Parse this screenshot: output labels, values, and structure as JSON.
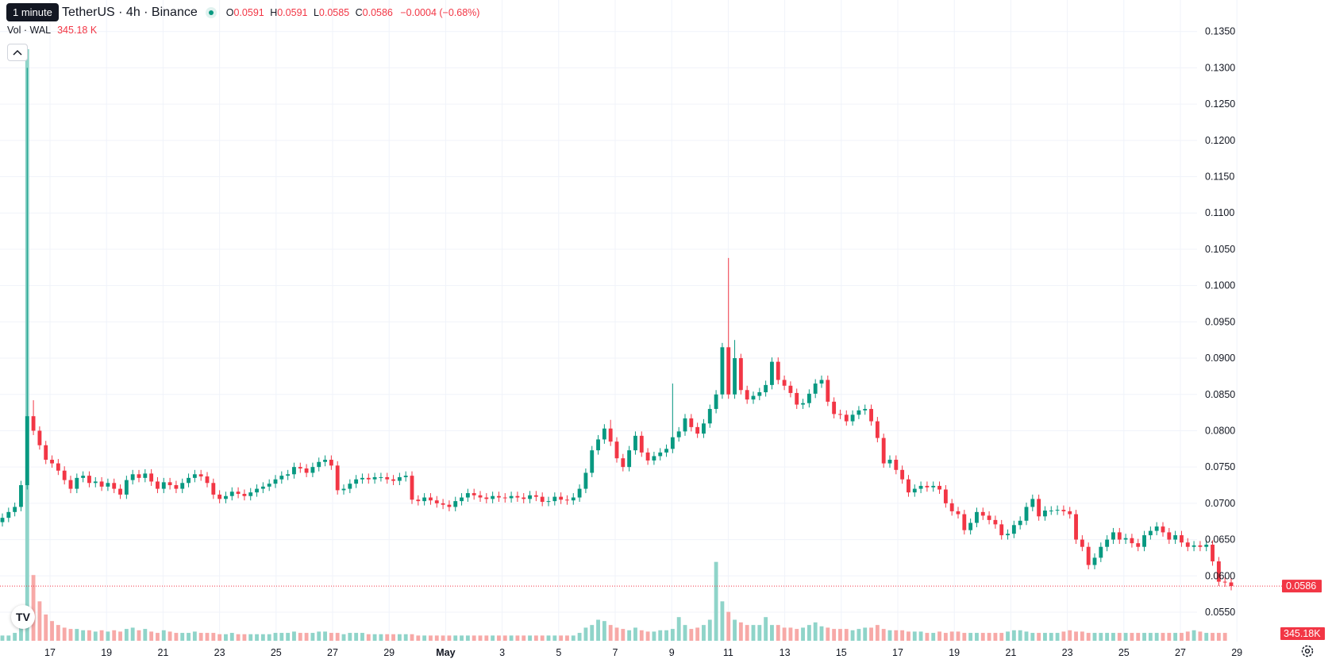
{
  "tooltip": "1 minute",
  "header": {
    "symbol": "TetherUS · 4h · Binance",
    "open_key": "O",
    "open": "0.0591",
    "high_key": "H",
    "high": "0.0591",
    "low_key": "L",
    "low": "0.0585",
    "close_key": "C",
    "close": "0.0586",
    "change": "−0.0004 (−0.68%)"
  },
  "volume": {
    "label": "Vol · WAL",
    "value": "345.18 K"
  },
  "price_tag": "0.0586",
  "volume_tag": "345.18K",
  "colors": {
    "up": "#089981",
    "down": "#f23645",
    "vol_up": "#8fd4c9",
    "vol_down": "#f7a9a7",
    "grid": "#f0f3fa"
  },
  "icons": {
    "collapse": "chevron-up-icon",
    "logo": "tradingview-logo-icon",
    "settings": "gear-icon"
  },
  "chart_data": {
    "type": "candlestick",
    "x_tick_labels": [
      "17",
      "19",
      "21",
      "23",
      "25",
      "27",
      "29",
      "May",
      "3",
      "5",
      "7",
      "9",
      "11",
      "13",
      "15",
      "17",
      "19",
      "21",
      "23",
      "25",
      "27",
      "29"
    ],
    "y_tick_labels": [
      "0.0550",
      "0.0600",
      "0.0650",
      "0.0700",
      "0.0750",
      "0.0800",
      "0.0850",
      "0.0900",
      "0.0950",
      "0.1000",
      "0.1050",
      "0.1100",
      "0.1150",
      "0.1200",
      "0.1250",
      "0.1300",
      "0.1350"
    ],
    "ylim": [
      0.0527,
      0.1365
    ],
    "last_price": 0.0586,
    "closes": [
      0.068,
      0.0688,
      0.0695,
      0.0725,
      0.082,
      0.08,
      0.078,
      0.076,
      0.0755,
      0.0745,
      0.0732,
      0.072,
      0.0735,
      0.0738,
      0.0728,
      0.073,
      0.0723,
      0.0728,
      0.072,
      0.0712,
      0.0732,
      0.074,
      0.0735,
      0.0741,
      0.073,
      0.072,
      0.0729,
      0.0725,
      0.072,
      0.0728,
      0.0735,
      0.074,
      0.0737,
      0.0728,
      0.0712,
      0.0706,
      0.071,
      0.0716,
      0.0713,
      0.071,
      0.0715,
      0.072,
      0.0723,
      0.0727,
      0.0733,
      0.0738,
      0.074,
      0.075,
      0.0748,
      0.0742,
      0.075,
      0.0757,
      0.076,
      0.0752,
      0.0718,
      0.072,
      0.0727,
      0.0733,
      0.0735,
      0.0733,
      0.0736,
      0.0736,
      0.0733,
      0.0731,
      0.0736,
      0.0738,
      0.0705,
      0.0703,
      0.0708,
      0.0704,
      0.07,
      0.0698,
      0.0695,
      0.0703,
      0.0708,
      0.0714,
      0.0711,
      0.0708,
      0.0706,
      0.071,
      0.0708,
      0.0707,
      0.071,
      0.0708,
      0.0706,
      0.0711,
      0.0709,
      0.0702,
      0.0703,
      0.0709,
      0.0705,
      0.0704,
      0.0708,
      0.072,
      0.0742,
      0.0773,
      0.0788,
      0.0803,
      0.0785,
      0.0762,
      0.075,
      0.0773,
      0.0793,
      0.077,
      0.0759,
      0.0765,
      0.077,
      0.0775,
      0.0791,
      0.0799,
      0.0817,
      0.0805,
      0.0796,
      0.081,
      0.083,
      0.085,
      0.0915,
      0.085,
      0.09,
      0.0856,
      0.0843,
      0.0848,
      0.0853,
      0.0863,
      0.0895,
      0.087,
      0.0862,
      0.0852,
      0.0836,
      0.0838,
      0.0851,
      0.0865,
      0.087,
      0.084,
      0.0823,
      0.0822,
      0.0813,
      0.0822,
      0.0828,
      0.083,
      0.0813,
      0.079,
      0.0755,
      0.076,
      0.0746,
      0.0733,
      0.0715,
      0.072,
      0.0724,
      0.0722,
      0.0724,
      0.0719,
      0.07,
      0.0689,
      0.0685,
      0.0663,
      0.0673,
      0.0688,
      0.0683,
      0.0677,
      0.0671,
      0.0656,
      0.0658,
      0.067,
      0.0676,
      0.0695,
      0.0706,
      0.0682,
      0.069,
      0.069,
      0.0691,
      0.0689,
      0.0685,
      0.065,
      0.064,
      0.0615,
      0.0625,
      0.064,
      0.065,
      0.066,
      0.065,
      0.0652,
      0.0645,
      0.064,
      0.0656,
      0.0662,
      0.0668,
      0.066,
      0.065,
      0.0656,
      0.0646,
      0.064,
      0.0642,
      0.064,
      0.0643,
      0.062,
      0.0592,
      0.0591,
      0.0586
    ],
    "volumes": [
      0.004,
      0.004,
      0.006,
      0.012,
      0.45,
      0.05,
      0.03,
      0.02,
      0.015,
      0.012,
      0.01,
      0.009,
      0.009,
      0.008,
      0.008,
      0.007,
      0.008,
      0.007,
      0.008,
      0.007,
      0.009,
      0.01,
      0.008,
      0.009,
      0.007,
      0.006,
      0.008,
      0.007,
      0.006,
      0.006,
      0.006,
      0.007,
      0.006,
      0.006,
      0.006,
      0.005,
      0.005,
      0.006,
      0.005,
      0.005,
      0.005,
      0.005,
      0.005,
      0.005,
      0.006,
      0.006,
      0.006,
      0.007,
      0.006,
      0.006,
      0.006,
      0.007,
      0.007,
      0.006,
      0.006,
      0.005,
      0.006,
      0.006,
      0.006,
      0.005,
      0.005,
      0.005,
      0.005,
      0.005,
      0.005,
      0.005,
      0.005,
      0.004,
      0.004,
      0.004,
      0.004,
      0.004,
      0.004,
      0.004,
      0.004,
      0.004,
      0.004,
      0.004,
      0.004,
      0.004,
      0.004,
      0.004,
      0.004,
      0.004,
      0.004,
      0.004,
      0.004,
      0.004,
      0.004,
      0.004,
      0.004,
      0.004,
      0.004,
      0.006,
      0.01,
      0.012,
      0.016,
      0.015,
      0.012,
      0.01,
      0.009,
      0.008,
      0.01,
      0.008,
      0.007,
      0.007,
      0.008,
      0.008,
      0.009,
      0.018,
      0.012,
      0.009,
      0.01,
      0.012,
      0.016,
      0.06,
      0.03,
      0.022,
      0.016,
      0.014,
      0.012,
      0.012,
      0.012,
      0.018,
      0.012,
      0.012,
      0.01,
      0.01,
      0.009,
      0.01,
      0.012,
      0.014,
      0.011,
      0.01,
      0.009,
      0.009,
      0.009,
      0.008,
      0.009,
      0.01,
      0.01,
      0.012,
      0.009,
      0.008,
      0.008,
      0.008,
      0.007,
      0.007,
      0.007,
      0.006,
      0.006,
      0.007,
      0.006,
      0.007,
      0.007,
      0.006,
      0.006,
      0.006,
      0.006,
      0.006,
      0.006,
      0.006,
      0.007,
      0.008,
      0.008,
      0.007,
      0.006,
      0.006,
      0.006,
      0.006,
      0.006,
      0.007,
      0.008,
      0.007,
      0.007,
      0.006,
      0.006,
      0.006,
      0.006,
      0.006,
      0.006,
      0.006,
      0.006,
      0.006,
      0.006,
      0.006,
      0.006,
      0.006,
      0.006,
      0.006,
      0.006,
      0.007,
      0.008,
      0.007,
      0.006,
      0.006,
      0.006,
      0.006
    ]
  }
}
